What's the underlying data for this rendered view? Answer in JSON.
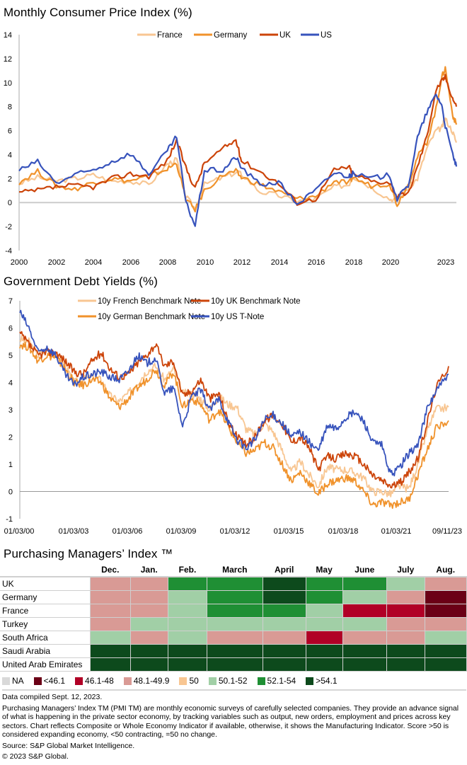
{
  "charts": {
    "cpi": {
      "title": "Monthly Consumer Price Index (%)",
      "yticks": [
        "14",
        "12",
        "10",
        "8",
        "6",
        "4",
        "2",
        "0",
        "-2",
        "-4"
      ],
      "xticks": [
        "2000",
        "2002",
        "2004",
        "2006",
        "2008",
        "2010",
        "2012",
        "2014",
        "2016",
        "2018",
        "2020",
        "2023"
      ]
    },
    "yields": {
      "title": "Government Debt Yields (%)",
      "yticks": [
        "7",
        "6",
        "5",
        "4",
        "3",
        "2",
        "1",
        "0",
        "-1"
      ],
      "xticks": [
        "01/03/00",
        "01/03/03",
        "01/03/06",
        "01/03/09",
        "01/03/12",
        "01/03/15",
        "01/03/18",
        "01/03/21",
        "09/11/23"
      ]
    },
    "pmi": {
      "title": "Purchasing Managers’ Index ™"
    }
  },
  "chart_data": [
    {
      "type": "line",
      "title": "Monthly Consumer Price Index (%)",
      "xlabel": "",
      "ylabel": "",
      "ylim": [
        -4,
        14
      ],
      "xlim": [
        2000,
        2023.7
      ],
      "grid": false,
      "legend": "top-center",
      "x": [
        2000,
        2001,
        2002,
        2003,
        2004,
        2005,
        2006,
        2007,
        2008,
        2008.5,
        2009,
        2009.5,
        2010,
        2011,
        2011.7,
        2012,
        2013,
        2014,
        2015,
        2016,
        2017,
        2017.8,
        2018,
        2019,
        2020,
        2020.4,
        2021,
        2021.5,
        2022,
        2022.5,
        2022.8,
        2023,
        2023.4,
        2023.6
      ],
      "series": [
        {
          "name": "France",
          "color": "#F8C692",
          "values": [
            1.6,
            2.1,
            1.8,
            2.0,
            2.3,
            1.8,
            1.8,
            1.5,
            3.2,
            3.6,
            0.5,
            -0.5,
            1.5,
            2.1,
            2.5,
            2.4,
            0.9,
            0.6,
            0.1,
            0.3,
            1.3,
            1.5,
            2.2,
            1.3,
            0.3,
            0.2,
            1.2,
            2.0,
            4.5,
            6.0,
            6.2,
            7.0,
            5.9,
            5.0
          ]
        },
        {
          "name": "Germany",
          "color": "#F0922B",
          "values": [
            1.7,
            2.6,
            1.4,
            1.1,
            1.7,
            2.0,
            1.8,
            2.2,
            2.8,
            3.3,
            0.3,
            -0.6,
            1.0,
            2.3,
            2.6,
            2.1,
            1.5,
            0.9,
            0.3,
            0.5,
            1.8,
            1.6,
            2.1,
            1.4,
            1.6,
            -0.2,
            1.5,
            3.8,
            5.0,
            7.8,
            10.4,
            11.2,
            7.3,
            6.5
          ]
        },
        {
          "name": "UK",
          "color": "#CC4409",
          "values": [
            0.8,
            1.0,
            1.3,
            1.4,
            1.3,
            2.0,
            2.4,
            2.2,
            3.5,
            5.2,
            2.9,
            1.2,
            3.3,
            4.5,
            5.2,
            3.5,
            2.6,
            1.6,
            0.0,
            0.3,
            2.7,
            3.0,
            2.4,
            1.8,
            1.7,
            0.5,
            0.7,
            3.0,
            5.5,
            9.4,
            10.1,
            10.5,
            8.7,
            8.0
          ]
        },
        {
          "name": "US",
          "color": "#3753BC",
          "values": [
            2.7,
            3.4,
            1.6,
            2.3,
            2.7,
            3.4,
            4.1,
            2.4,
            4.3,
            5.5,
            0.0,
            -1.9,
            2.7,
            2.7,
            3.8,
            2.9,
            1.5,
            1.7,
            -0.1,
            1.0,
            2.5,
            2.2,
            2.4,
            2.0,
            2.3,
            0.3,
            1.4,
            5.4,
            7.5,
            9.0,
            8.2,
            6.4,
            4.0,
            3.0
          ]
        }
      ]
    },
    {
      "type": "line",
      "title": "Government Debt Yields (%)",
      "xlabel": "",
      "ylabel": "",
      "ylim": [
        -1,
        7
      ],
      "xlim": [
        "01/03/00",
        "09/11/23"
      ],
      "grid": false,
      "legend": "top-center",
      "x": [
        2000,
        2000.5,
        2001,
        2001.5,
        2002,
        2002.5,
        2003,
        2003.5,
        2004,
        2004.5,
        2005,
        2005.5,
        2006,
        2006.5,
        2007,
        2007.5,
        2008,
        2008.5,
        2009,
        2009.5,
        2010,
        2010.5,
        2011,
        2011.5,
        2012,
        2012.5,
        2013,
        2013.5,
        2014,
        2014.5,
        2015,
        2015.5,
        2016,
        2016.5,
        2017,
        2017.5,
        2018,
        2018.5,
        2019,
        2019.5,
        2020,
        2020.5,
        2021,
        2021.5,
        2022,
        2022.5,
        2023,
        2023.7
      ],
      "series": [
        {
          "name": "10y French Benchmark Note",
          "color": "#F8C692",
          "values": [
            5.6,
            5.5,
            5.0,
            5.2,
            5.0,
            4.6,
            4.0,
            4.1,
            4.2,
            4.1,
            3.5,
            3.3,
            3.6,
            4.0,
            4.4,
            4.6,
            4.1,
            4.5,
            3.6,
            3.6,
            3.4,
            3.0,
            3.5,
            3.2,
            3.1,
            2.3,
            2.1,
            2.5,
            2.2,
            1.5,
            0.7,
            1.1,
            0.6,
            0.2,
            0.9,
            0.8,
            0.8,
            0.7,
            0.5,
            0.0,
            0.0,
            -0.1,
            0.2,
            0.1,
            1.0,
            2.2,
            3.0,
            3.1
          ]
        },
        {
          "name": "10y German Benchmark Note",
          "color": "#F0922B",
          "values": [
            5.4,
            5.3,
            4.8,
            5.0,
            4.9,
            4.5,
            4.0,
            3.9,
            4.1,
            4.0,
            3.4,
            3.1,
            3.4,
            3.8,
            4.1,
            4.5,
            3.9,
            4.4,
            3.1,
            3.4,
            3.2,
            2.6,
            3.0,
            2.4,
            1.8,
            1.4,
            1.5,
            1.8,
            1.6,
            1.0,
            0.4,
            0.7,
            0.3,
            -0.1,
            0.3,
            0.4,
            0.5,
            0.4,
            0.0,
            -0.5,
            -0.4,
            -0.5,
            -0.4,
            -0.3,
            0.6,
            1.5,
            2.3,
            2.6
          ]
        },
        {
          "name": "10y UK Benchmark Note",
          "color": "#CC4409",
          "values": [
            5.8,
            5.4,
            5.0,
            5.1,
            5.1,
            4.8,
            4.4,
            4.3,
            4.8,
            5.1,
            4.5,
            4.2,
            4.3,
            4.7,
            5.0,
            5.4,
            4.6,
            4.8,
            3.5,
            3.7,
            4.1,
            3.4,
            3.6,
            2.6,
            2.0,
            1.7,
            2.0,
            2.6,
            2.8,
            2.5,
            1.8,
            2.0,
            1.6,
            0.8,
            1.3,
            1.2,
            1.4,
            1.3,
            1.0,
            0.6,
            0.4,
            0.2,
            0.3,
            0.7,
            1.2,
            2.5,
            3.8,
            4.6
          ]
        },
        {
          "name": "10y US T-Note",
          "color": "#3753BC",
          "values": [
            6.6,
            6.0,
            5.1,
            5.3,
            5.0,
            4.3,
            3.9,
            4.2,
            4.3,
            4.4,
            4.2,
            4.1,
            4.4,
            5.0,
            4.7,
            4.9,
            3.6,
            3.8,
            2.4,
            3.5,
            3.7,
            3.0,
            3.4,
            2.6,
            1.9,
            1.6,
            1.9,
            2.6,
            2.8,
            2.5,
            2.0,
            2.2,
            1.8,
            1.5,
            2.4,
            2.3,
            2.7,
            2.9,
            2.6,
            1.8,
            1.7,
            0.6,
            0.9,
            1.4,
            1.7,
            3.0,
            3.7,
            4.3
          ]
        }
      ]
    },
    {
      "type": "heatmap",
      "title": "Purchasing Managers’ Index ™",
      "columns": [
        "Dec.",
        "Jan.",
        "Feb.",
        "March",
        "April",
        "May",
        "June",
        "July",
        "Aug."
      ],
      "rows": [
        {
          "label": "UK",
          "values": [
            "48.1-49.9",
            "48.1-49.9",
            "52.1-54",
            "52.1-54",
            ">54.1",
            "52.1-54",
            "52.1-54",
            "50.1-52",
            "48.1-49.9"
          ]
        },
        {
          "label": "Germany",
          "values": [
            "48.1-49.9",
            "48.1-49.9",
            "50.1-52",
            "52.1-54",
            ">54.1",
            "52.1-54",
            "50.1-52",
            "48.1-49.9",
            "<46.1"
          ]
        },
        {
          "label": "France",
          "values": [
            "48.1-49.9",
            "48.1-49.9",
            "50.1-52",
            "52.1-54",
            "52.1-54",
            "50.1-52",
            "46.1-48",
            "46.1-48",
            "<46.1"
          ]
        },
        {
          "label": "Turkey",
          "values": [
            "48.1-49.9",
            "50.1-52",
            "50.1-52",
            "50.1-52",
            "50.1-52",
            "50.1-52",
            "50.1-52",
            "48.1-49.9",
            "48.1-49.9"
          ]
        },
        {
          "label": "South Africa",
          "values": [
            "50.1-52",
            "48.1-49.9",
            "50.1-52",
            "48.1-49.9",
            "48.1-49.9",
            "46.1-48",
            "48.1-49.9",
            "48.1-49.9",
            "50.1-52"
          ]
        },
        {
          "label": "Saudi Arabia",
          "values": [
            ">54.1",
            ">54.1",
            ">54.1",
            ">54.1",
            ">54.1",
            ">54.1",
            ">54.1",
            ">54.1",
            ">54.1"
          ]
        },
        {
          "label": "United Arab Emirates",
          "values": [
            ">54.1",
            ">54.1",
            ">54.1",
            ">54.1",
            ">54.1",
            ">54.1",
            ">54.1",
            ">54.1",
            ">54.1"
          ]
        }
      ],
      "legend": [
        {
          "label": "NA",
          "color": "#D9D9D9"
        },
        {
          "label": "<46.1",
          "color": "#6B0016"
        },
        {
          "label": "46.1-48",
          "color": "#B10026"
        },
        {
          "label": "48.1-49.9",
          "color": "#D99A95"
        },
        {
          "label": "50",
          "color": "#F8C692"
        },
        {
          "label": "50.1-52",
          "color": "#A1CFA6"
        },
        {
          "label": "52.1-54",
          "color": "#1F8F34"
        },
        {
          "label": ">54.1",
          "color": "#0D4A1C"
        }
      ]
    }
  ],
  "notes": {
    "compiled": "Data compiled Sept. 12, 2023.",
    "description": "Purchasing Managers’ Index TM (PMI TM) are monthly economic surveys of carefully selected companies. They provide an advance signal of what is happening in the private sector economy, by tracking variables such as output, new orders, employment and prices across key sectors. Chart reflects Composite or Whole Economy Indicator if available, otherwise, it shows the Manufacturing Indicator. Score >50 is considered expanding economy, <50 contracting, =50 no change.",
    "source": "Source: S&P Global Market Intelligence.",
    "copyright": "© 2023 S&P Global."
  }
}
